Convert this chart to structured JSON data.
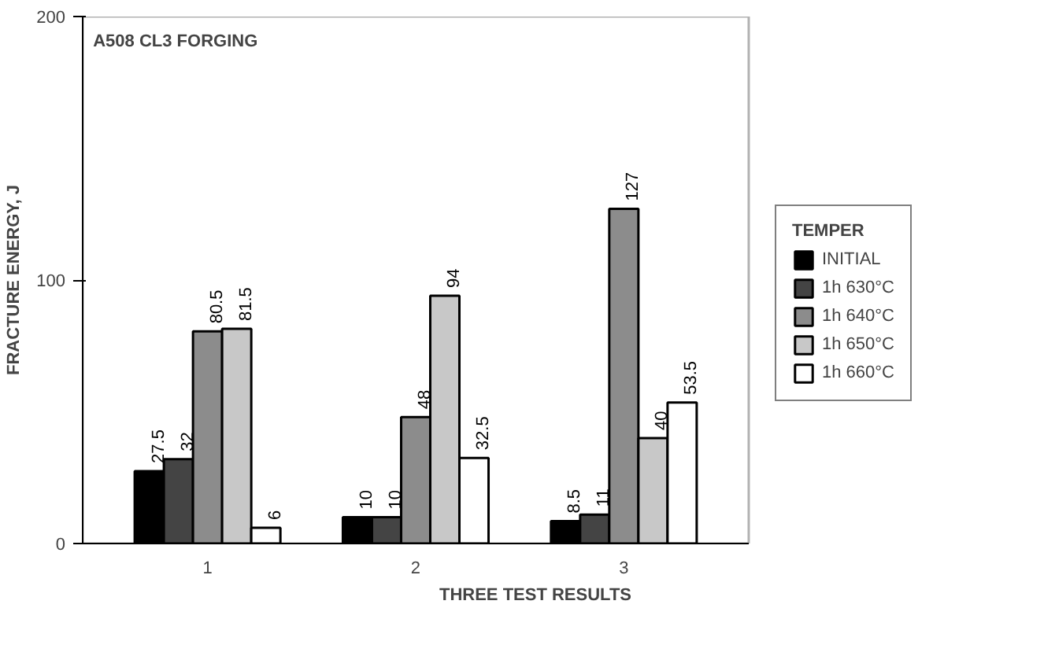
{
  "chart_data": {
    "type": "bar",
    "title": "A508 CL3 FORGING",
    "xlabel": "THREE TEST RESULTS",
    "ylabel": "FRACTURE ENERGY, J",
    "legend_title": "TEMPER",
    "categories": [
      "1",
      "2",
      "3"
    ],
    "series": [
      {
        "name": "INITIAL",
        "color": "#000000",
        "values": [
          27.5,
          10,
          8.5
        ]
      },
      {
        "name": "1h 630°C",
        "color": "#444444",
        "values": [
          32,
          10,
          11
        ]
      },
      {
        "name": "1h 640°C",
        "color": "#8c8c8c",
        "values": [
          80.5,
          48,
          127
        ]
      },
      {
        "name": "1h 650°C",
        "color": "#c8c8c8",
        "values": [
          81.5,
          94,
          40
        ]
      },
      {
        "name": "1h 660°C",
        "color": "#ffffff",
        "values": [
          6,
          32.5,
          53.5
        ]
      }
    ],
    "ylim": [
      0,
      200
    ],
    "yticks": [
      0,
      100,
      200
    ],
    "grid": false,
    "legend": "right",
    "data_labels": true
  }
}
